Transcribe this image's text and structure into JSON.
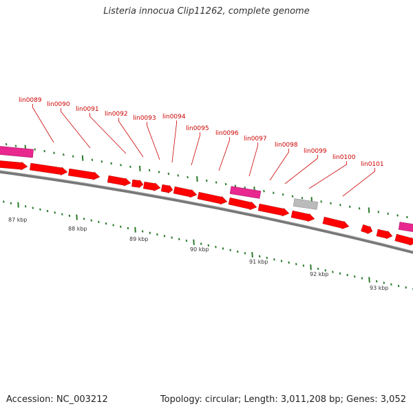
{
  "title": "Listeria innocua Clip11262, complete genome",
  "footer": {
    "accession": "Accession: NC_003212",
    "summary": "Topology: circular; Length: 3,011,208 bp; Genes: 3,052"
  },
  "colors": {
    "cds": "#ff0000",
    "rna": "#e8278f",
    "pseudo": "#bbbbbb",
    "backbone": "#777777",
    "label": "#cc0000",
    "gc_tick": "#2a7a2a"
  },
  "scale_labels": [
    "87 kbp",
    "88 kbp",
    "89 kbp",
    "90 kbp",
    "91 kbp",
    "92 kbp",
    "93 kbp"
  ],
  "gene_labels": [
    "lin0089",
    "lin0090",
    "lin0091",
    "lin0092",
    "lin0093",
    "lin0094",
    "lin0095",
    "lin0096",
    "lin0097",
    "lin0098",
    "lin0099",
    "lin0100",
    "lin0101"
  ]
}
